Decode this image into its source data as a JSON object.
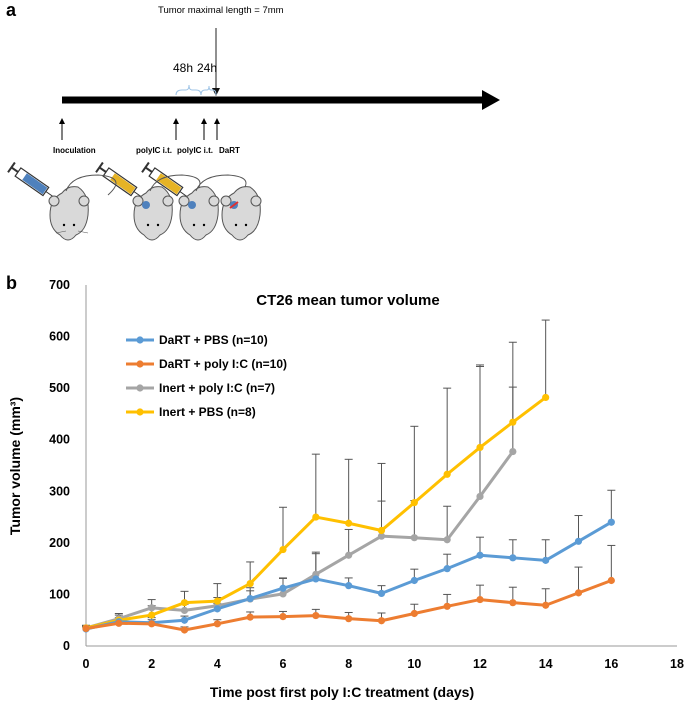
{
  "panel_a": {
    "letter": "a",
    "note": "Tumor maximal length = 7mm",
    "interval_1": "48h",
    "interval_2": "24h",
    "events": [
      "Inoculation",
      "polyIC i.t.",
      "polyIC i.t.",
      "DaRT"
    ]
  },
  "panel_b": {
    "letter": "b"
  },
  "colors": {
    "dart_pbs": "#5b9bd5",
    "dart_polyic": "#ed7d31",
    "inert_polyic": "#a5a5a5",
    "inert_pbs": "#ffc000",
    "error_bar": "#555555"
  },
  "chart_data": {
    "type": "line",
    "title": "CT26 mean tumor volume",
    "xlabel": "Time post first poly I:C treatment (days)",
    "ylabel": "Tumor volume (mm³)",
    "xlim": [
      0,
      18
    ],
    "ylim": [
      0,
      700
    ],
    "xticks": [
      0,
      2,
      4,
      6,
      8,
      10,
      12,
      14,
      16,
      18
    ],
    "yticks": [
      0,
      100,
      200,
      300,
      400,
      500,
      600,
      700
    ],
    "legend_position": "top-left",
    "series": [
      {
        "name": "DaRT + PBS (n=10)",
        "key": "dart_pbs",
        "x": [
          0,
          1,
          2,
          3,
          4,
          5,
          6,
          7,
          8,
          9,
          10,
          11,
          12,
          13,
          14,
          15,
          16
        ],
        "y": [
          33,
          47,
          45,
          50,
          72,
          92,
          112,
          130,
          117,
          102,
          127,
          150,
          176,
          171,
          166,
          203,
          240
        ],
        "err": [
          4,
          8,
          10,
          8,
          10,
          15,
          20,
          52,
          15,
          15,
          22,
          28,
          35,
          35,
          40,
          50,
          62
        ]
      },
      {
        "name": "DaRT + poly I:C (n=10)",
        "key": "dart_polyic",
        "x": [
          0,
          1,
          2,
          3,
          4,
          5,
          6,
          7,
          8,
          9,
          10,
          11,
          12,
          13,
          14,
          15,
          16
        ],
        "y": [
          34,
          44,
          43,
          31,
          43,
          56,
          57,
          59,
          53,
          49,
          63,
          77,
          90,
          84,
          79,
          103,
          127
        ],
        "err": [
          4,
          6,
          8,
          6,
          8,
          10,
          10,
          12,
          12,
          15,
          18,
          23,
          28,
          30,
          32,
          50,
          68
        ]
      },
      {
        "name": "Inert + poly I:C (n=7)",
        "key": "inert_polyic",
        "x": [
          0,
          1,
          2,
          3,
          4,
          5,
          6,
          7,
          8,
          9,
          10,
          11,
          12,
          13
        ],
        "y": [
          35,
          53,
          74,
          69,
          78,
          91,
          101,
          139,
          176,
          213,
          210,
          206,
          290,
          377
        ],
        "err": [
          5,
          10,
          16,
          12,
          16,
          22,
          30,
          40,
          50,
          68,
          72,
          65,
          252,
          125
        ]
      },
      {
        "name": "Inert + PBS (n=8)",
        "key": "inert_pbs",
        "x": [
          0,
          1,
          2,
          3,
          4,
          5,
          6,
          7,
          8,
          9,
          10,
          11,
          12,
          13,
          14
        ],
        "y": [
          35,
          50,
          60,
          84,
          87,
          121,
          187,
          250,
          238,
          224,
          278,
          333,
          385,
          434,
          482
        ],
        "err": [
          5,
          10,
          18,
          22,
          34,
          42,
          82,
          122,
          124,
          130,
          148,
          167,
          160,
          155,
          150
        ]
      }
    ]
  }
}
